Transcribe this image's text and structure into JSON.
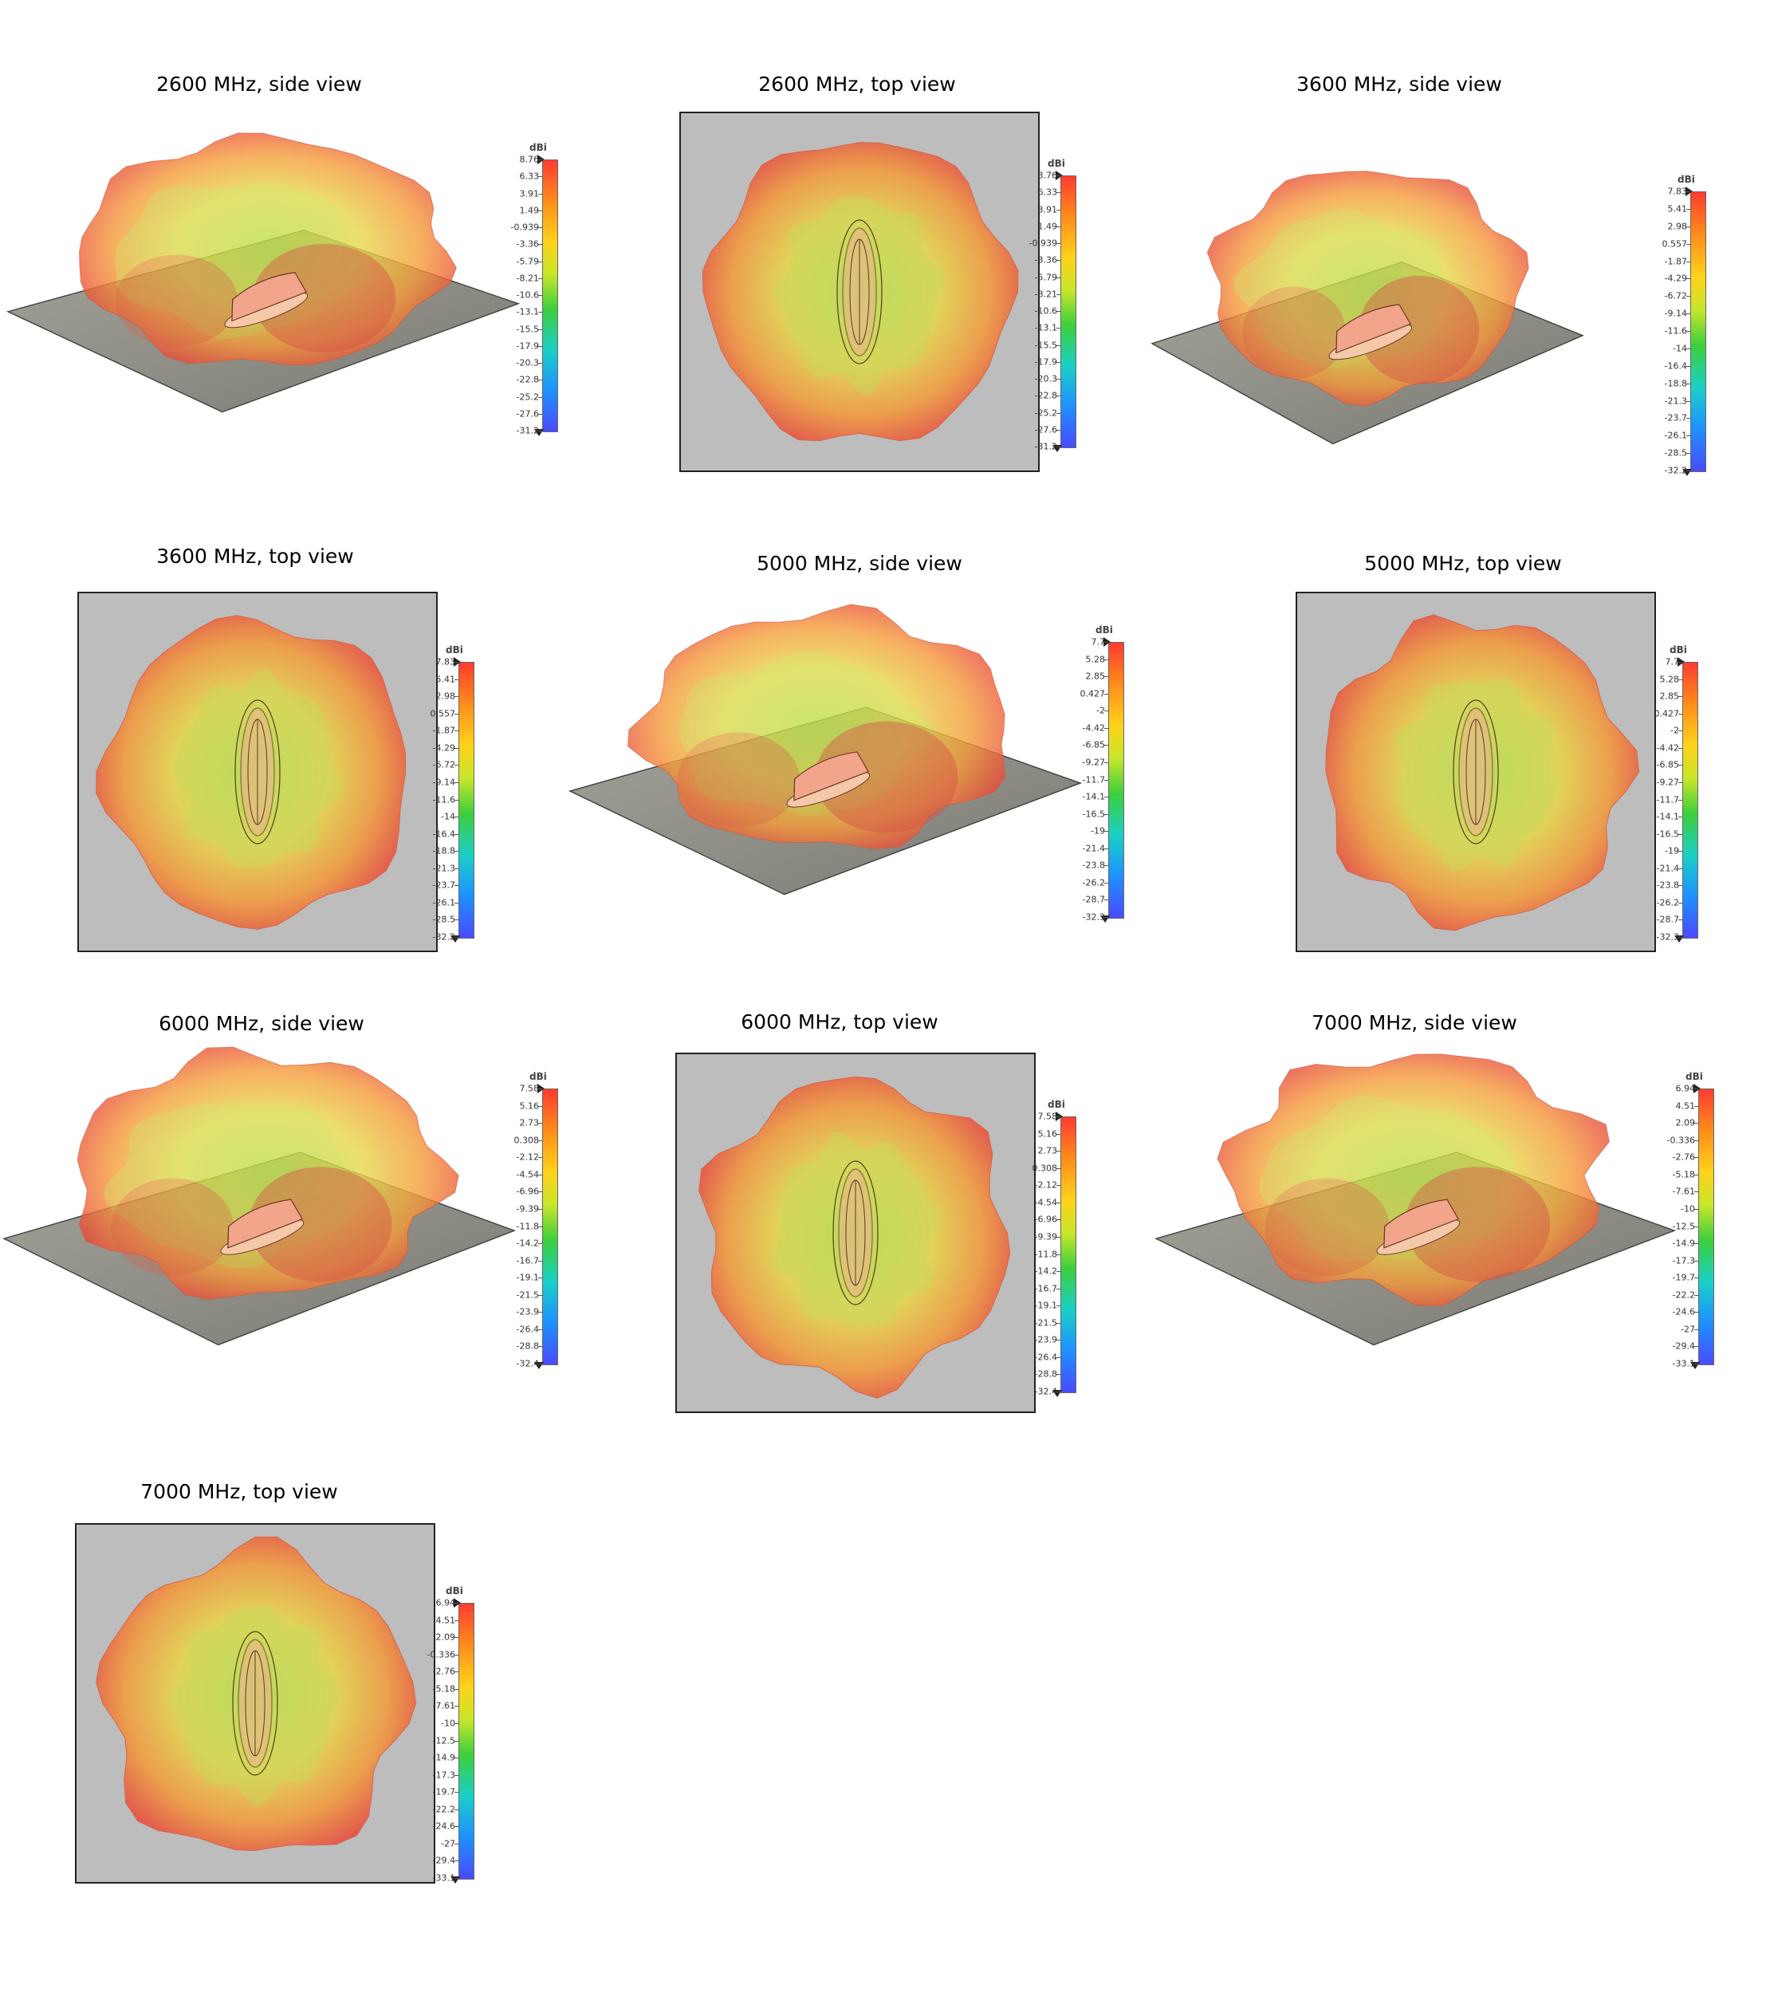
{
  "scale_unit": "dBi",
  "panels": [
    {
      "title": "2600 MHz, side view",
      "view": "side",
      "scale": [
        "8.76",
        "6.33",
        "3.91",
        "1.49",
        "-0.939",
        "-3.36",
        "-5.79",
        "-8.21",
        "-10.6",
        "-13.1",
        "-15.5",
        "-17.9",
        "-20.3",
        "-22.8",
        "-25.2",
        "-27.6",
        "-31.2"
      ]
    },
    {
      "title": "2600 MHz, top view",
      "view": "top",
      "scale": [
        "8.76",
        "6.33",
        "3.91",
        "1.49",
        "-0.939",
        "-3.36",
        "-5.79",
        "-8.21",
        "-10.6",
        "-13.1",
        "-15.5",
        "-17.9",
        "-20.3",
        "-22.8",
        "-25.2",
        "-27.6",
        "-31.2"
      ]
    },
    {
      "title": "3600 MHz, side view",
      "view": "side",
      "scale": [
        "7.83",
        "5.41",
        "2.98",
        "0.557",
        "-1.87",
        "-4.29",
        "-6.72",
        "-9.14",
        "-11.6",
        "-14",
        "-16.4",
        "-18.8",
        "-21.3",
        "-23.7",
        "-26.1",
        "-28.5",
        "-32.2"
      ]
    },
    {
      "title": "3600 MHz, top view",
      "view": "top",
      "scale": [
        "7.83",
        "5.41",
        "2.98",
        "0.557",
        "-1.87",
        "-4.29",
        "-6.72",
        "-9.14",
        "-11.6",
        "-14",
        "-16.4",
        "-18.8",
        "-21.3",
        "-23.7",
        "-26.1",
        "-28.5",
        "-32.2"
      ]
    },
    {
      "title": "5000 MHz, side view",
      "view": "side",
      "scale": [
        "7.7",
        "5.28",
        "2.85",
        "0.427",
        "-2",
        "-4.42",
        "-6.85",
        "-9.27",
        "-11.7",
        "-14.1",
        "-16.5",
        "-19",
        "-21.4",
        "-23.8",
        "-26.2",
        "-28.7",
        "-32.3"
      ]
    },
    {
      "title": "5000 MHz, top view",
      "view": "top",
      "scale": [
        "7.7",
        "5.28",
        "2.85",
        "0.427",
        "-2",
        "-4.42",
        "-6.85",
        "-9.27",
        "-11.7",
        "-14.1",
        "-16.5",
        "-19",
        "-21.4",
        "-23.8",
        "-26.2",
        "-28.7",
        "-32.3"
      ]
    },
    {
      "title": "6000 MHz, side view",
      "view": "side",
      "scale": [
        "7.58",
        "5.16",
        "2.73",
        "0.308",
        "-2.12",
        "-4.54",
        "-6.96",
        "-9.39",
        "-11.8",
        "-14.2",
        "-16.7",
        "-19.1",
        "-21.5",
        "-23.9",
        "-26.4",
        "-28.8",
        "-32.4"
      ]
    },
    {
      "title": "6000 MHz, top view",
      "view": "top",
      "scale": [
        "7.58",
        "5.16",
        "2.73",
        "0.308",
        "-2.12",
        "-4.54",
        "-6.96",
        "-9.39",
        "-11.8",
        "-14.2",
        "-16.7",
        "-19.1",
        "-21.5",
        "-23.9",
        "-26.4",
        "-28.8",
        "-32.4"
      ]
    },
    {
      "title": "7000 MHz, side view",
      "view": "side",
      "scale": [
        "6.94",
        "4.51",
        "2.09",
        "-0.336",
        "-2.76",
        "-5.18",
        "-7.61",
        "-10",
        "-12.5",
        "-14.9",
        "-17.3",
        "-19.7",
        "-22.2",
        "-24.6",
        "-27",
        "-29.4",
        "-33.1"
      ]
    },
    {
      "title": "7000 MHz, top view",
      "view": "top",
      "scale": [
        "6.94",
        "4.51",
        "2.09",
        "-0.336",
        "-2.76",
        "-5.18",
        "-7.61",
        "-10",
        "-12.5",
        "-14.9",
        "-17.3",
        "-19.7",
        "-22.2",
        "-24.6",
        "-27",
        "-29.4",
        "-33.1"
      ]
    }
  ]
}
